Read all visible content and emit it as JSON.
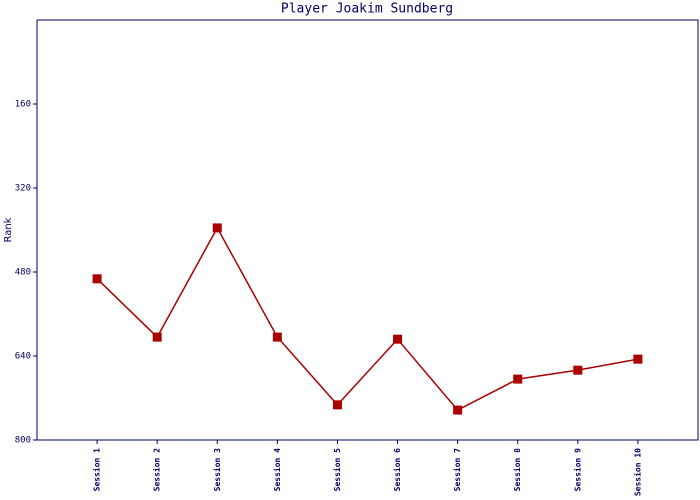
{
  "chart_data": {
    "type": "line",
    "title": "Player Joakim Sundberg",
    "y_label": "Rank",
    "categories": [
      "Session 1",
      "Session 2",
      "Session 3",
      "Session 4",
      "Session 5",
      "Session 6",
      "Session 7",
      "Session 8",
      "Session 9",
      "Session 10"
    ],
    "values": [
      493,
      604,
      396,
      604,
      733,
      608,
      743,
      684,
      667,
      646
    ],
    "color": "#aa0000",
    "ylim": [
      800,
      0
    ],
    "yticks": [
      160,
      320,
      480,
      640,
      800
    ],
    "grid": false
  }
}
